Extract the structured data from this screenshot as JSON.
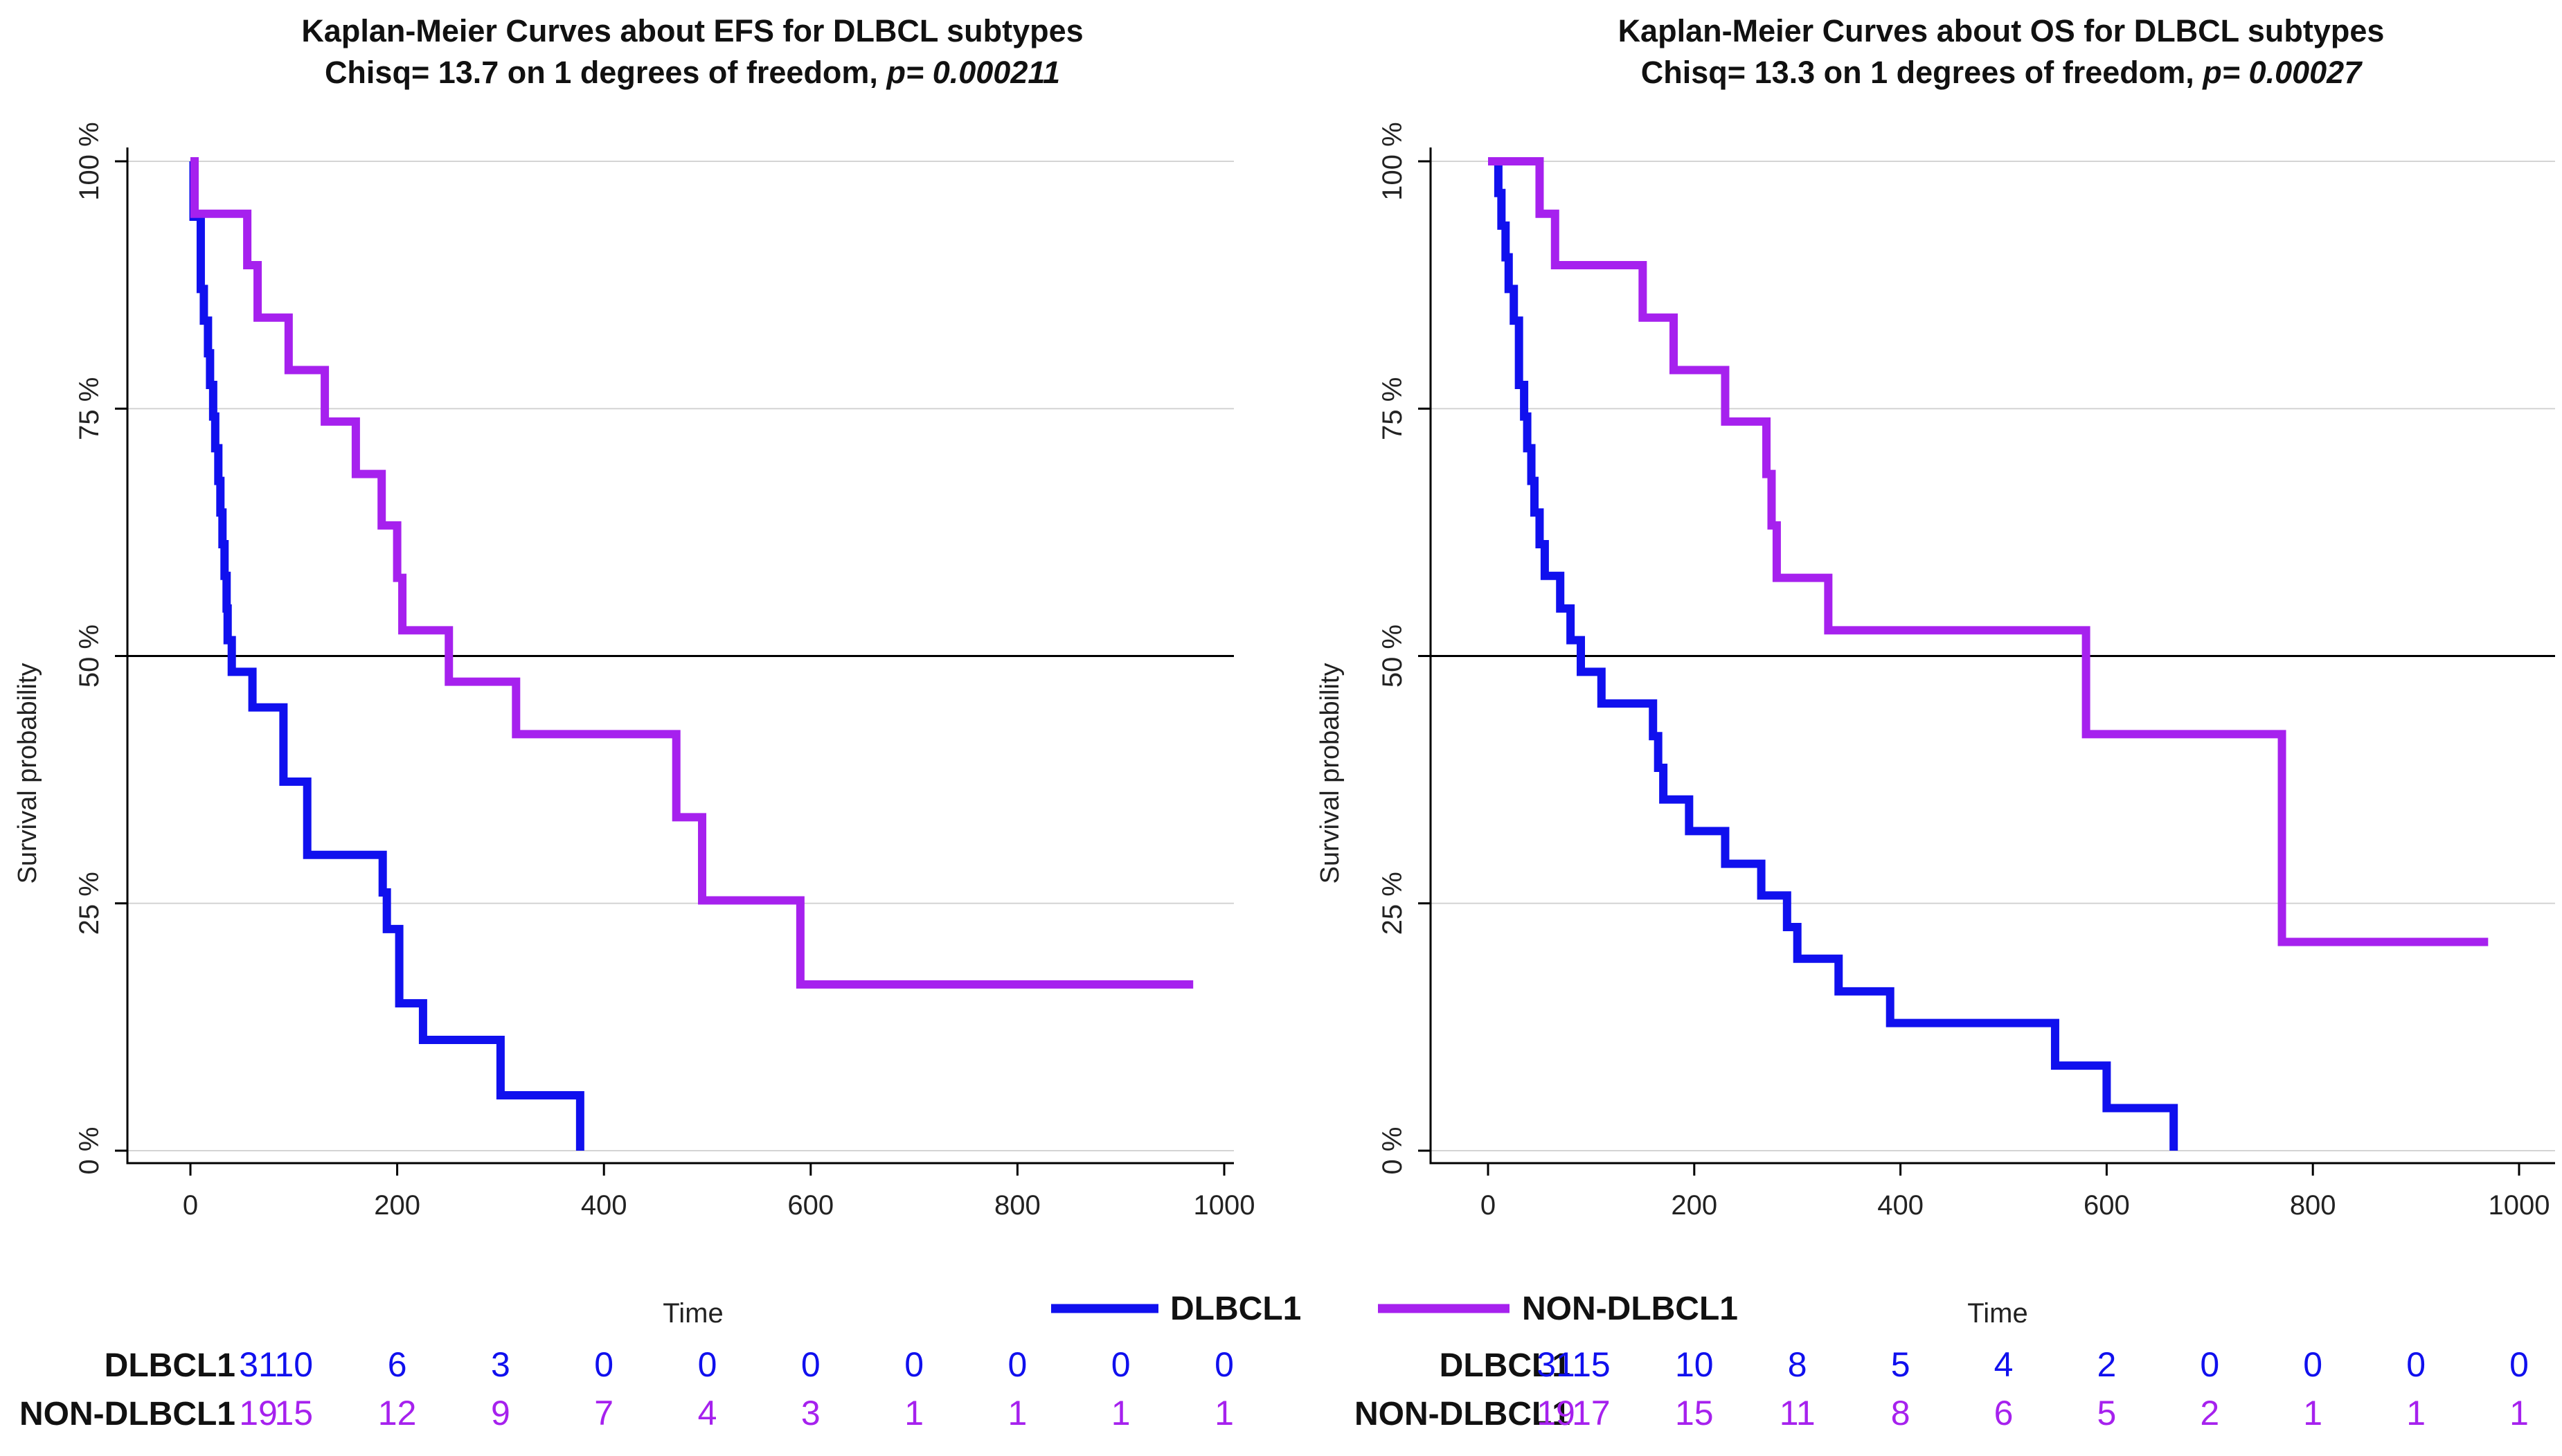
{
  "colors": {
    "dlbcl1": "#1010ee",
    "non_dlbcl1": "#a621ee",
    "grid": "#d4d4d4",
    "axis": "#000000"
  },
  "legend": {
    "items": [
      {
        "label": "DLBCL1",
        "color": "#1010ee"
      },
      {
        "label": "NON-DLBCL1",
        "color": "#a621ee"
      }
    ]
  },
  "chart_data": [
    {
      "type": "line",
      "title": "Kaplan-Meier Curves about EFS for DLBCL subtypes",
      "stats_prefix": "Chisq= 13.7 on 1 degrees of freedom, ",
      "p_label": "p= 0.000211",
      "xlabel": "Time",
      "ylabel": "Survival probability",
      "xlim": [
        0,
        1000
      ],
      "ylim": [
        0,
        100
      ],
      "xticks": [
        0,
        200,
        400,
        600,
        800,
        1000
      ],
      "yticks": [
        0,
        25,
        50,
        75,
        100
      ],
      "ytick_labels": [
        "0 %",
        "25 %",
        "50 %",
        "75 %",
        "100 %"
      ],
      "reference_line_y": 50,
      "series": [
        {
          "name": "DLBCL1",
          "x": [
            0,
            3,
            10,
            13,
            17,
            19,
            20,
            22,
            24,
            27,
            29,
            31,
            33,
            34,
            35,
            36,
            37,
            38,
            40,
            44,
            47,
            50,
            60,
            82,
            90,
            110,
            113,
            181,
            186,
            190,
            202,
            205,
            225,
            300,
            375,
            377
          ],
          "y": [
            100,
            94.4,
            87.1,
            83.9,
            80.6,
            77.4,
            77.4,
            74.2,
            71.0,
            67.7,
            64.5,
            61.3,
            58.1,
            58.1,
            54.8,
            51.6,
            51.6,
            51.6,
            48.4,
            48.4,
            48.4,
            48.4,
            44.8,
            44.8,
            37.3,
            37.3,
            29.9,
            29.9,
            26.1,
            22.4,
            14.9,
            14.9,
            11.2,
            5.6,
            5.6,
            0
          ]
        },
        {
          "name": "NON-DLBCL1",
          "x": [
            0,
            4,
            18,
            30,
            35,
            40,
            50,
            55,
            60,
            65,
            78,
            90,
            95,
            110,
            125,
            130,
            155,
            160,
            185,
            200,
            205,
            220,
            230,
            250,
            280,
            300,
            315,
            340,
            450,
            470,
            495,
            530,
            590,
            600,
            700,
            800,
            970
          ],
          "y": [
            100,
            94.7,
            94.7,
            94.7,
            94.7,
            94.7,
            94.7,
            89.5,
            89.5,
            84.2,
            84.2,
            84.2,
            78.9,
            78.9,
            78.9,
            73.7,
            73.7,
            68.4,
            63.2,
            57.9,
            52.6,
            52.6,
            52.6,
            47.4,
            47.4,
            47.4,
            42.1,
            42.1,
            42.1,
            33.7,
            25.3,
            25.3,
            16.8,
            16.8,
            16.8,
            16.8,
            16.8
          ]
        }
      ],
      "risk_table": {
        "times": [
          0,
          100,
          200,
          300,
          400,
          500,
          600,
          700,
          800,
          900,
          1000
        ],
        "rows": [
          {
            "name": "DLBCL1",
            "values": [
              "31",
              "10",
              "6",
              "3",
              "0",
              "0",
              "0",
              "0",
              "0",
              "0",
              "0"
            ]
          },
          {
            "name": "NON-DLBCL1",
            "values": [
              "19",
              "15",
              "12",
              "9",
              "7",
              "4",
              "3",
              "1",
              "1",
              "1",
              "1"
            ]
          }
        ]
      }
    },
    {
      "type": "line",
      "title": "Kaplan-Meier Curves about OS for DLBCL subtypes",
      "stats_prefix": "Chisq= 13.3 on 1 degrees of freedom, ",
      "p_label": "p= 0.00027",
      "xlabel": "Time",
      "ylabel": "Survival probability",
      "xlim": [
        0,
        1000
      ],
      "ylim": [
        0,
        100
      ],
      "xticks": [
        0,
        200,
        400,
        600,
        800,
        1000
      ],
      "yticks": [
        0,
        25,
        50,
        75,
        100
      ],
      "ytick_labels": [
        "0 %",
        "25 %",
        "50 %",
        "75 %",
        "100 %"
      ],
      "reference_line_y": 50,
      "series": [
        {
          "name": "DLBCL1",
          "x": [
            0,
            10,
            13,
            17,
            20,
            25,
            30,
            35,
            38,
            42,
            45,
            50,
            55,
            60,
            70,
            80,
            90,
            110,
            160,
            165,
            170,
            175,
            180,
            195,
            230,
            265,
            290,
            300,
            310,
            340,
            390,
            420,
            550,
            600,
            660,
            665
          ],
          "y": [
            100,
            96.8,
            93.5,
            90.3,
            87.1,
            83.9,
            77.4,
            74.2,
            71.0,
            67.7,
            64.5,
            61.3,
            58.1,
            58.1,
            54.8,
            51.6,
            48.4,
            45.2,
            41.9,
            38.7,
            35.5,
            35.5,
            35.5,
            32.3,
            29.0,
            25.8,
            22.6,
            19.4,
            19.4,
            16.1,
            12.9,
            12.9,
            8.6,
            4.3,
            4.3,
            0
          ]
        },
        {
          "name": "NON-DLBCL1",
          "x": [
            0,
            50,
            55,
            65,
            150,
            180,
            230,
            270,
            275,
            280,
            330,
            580,
            600,
            760,
            770,
            970
          ],
          "y": [
            100,
            94.7,
            94.7,
            89.5,
            84.2,
            78.9,
            73.7,
            68.4,
            63.2,
            57.9,
            52.6,
            42.1,
            42.1,
            42.1,
            21.1,
            21.1
          ]
        }
      ],
      "risk_table": {
        "times": [
          0,
          100,
          200,
          300,
          400,
          500,
          600,
          700,
          800,
          900,
          1000
        ],
        "rows": [
          {
            "name": "DLBCL1",
            "values": [
              "31",
              "15",
              "10",
              "8",
              "5",
              "4",
              "2",
              "0",
              "0",
              "0",
              "0"
            ]
          },
          {
            "name": "NON-DLBCL1",
            "values": [
              "19",
              "17",
              "15",
              "11",
              "8",
              "6",
              "5",
              "2",
              "1",
              "1",
              "1"
            ]
          }
        ]
      }
    }
  ]
}
